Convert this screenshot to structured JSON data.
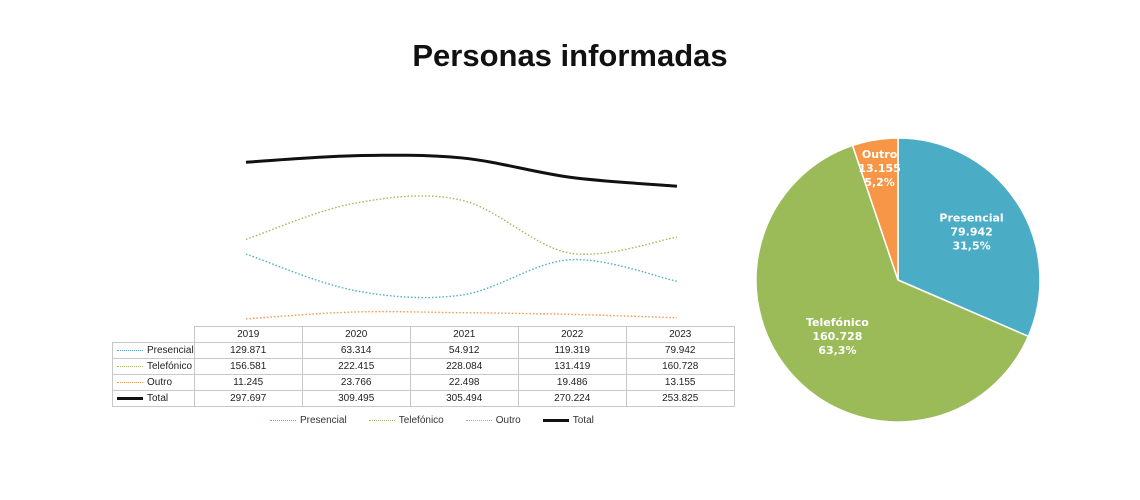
{
  "title": "Personas informadas",
  "chart_data": [
    {
      "type": "line",
      "categories": [
        "2019",
        "2020",
        "2021",
        "2022",
        "2023"
      ],
      "series": [
        {
          "name": "Presencial",
          "values": [
            129871,
            63314,
            54912,
            119319,
            79942
          ],
          "display": [
            "129.871",
            "63.314",
            "54.912",
            "119.319",
            "79.942"
          ],
          "color": "#4bacc6",
          "style": "dotted"
        },
        {
          "name": "Telefónico",
          "values": [
            156581,
            222415,
            228084,
            131419,
            160728
          ],
          "display": [
            "156.581",
            "222.415",
            "228.084",
            "131.419",
            "160.728"
          ],
          "color": "#9bbb59",
          "style": "dotted"
        },
        {
          "name": "Outro",
          "values": [
            11245,
            23766,
            22498,
            19486,
            13155
          ],
          "display": [
            "11.245",
            "23.766",
            "22.498",
            "19.486",
            "13.155"
          ],
          "color": "#f79646",
          "style": "dotted"
        },
        {
          "name": "Total",
          "values": [
            297697,
            309495,
            305494,
            270224,
            253825
          ],
          "display": [
            "297.697",
            "309.495",
            "305.494",
            "270.224",
            "253.825"
          ],
          "color": "#111111",
          "style": "solid"
        }
      ],
      "legend_position": "bottom",
      "grid": false
    },
    {
      "type": "pie",
      "slices": [
        {
          "name": "Presencial",
          "value": 79942,
          "display_value": "79.942",
          "percent": "31,5%",
          "color": "#4bacc6"
        },
        {
          "name": "Telefónico",
          "value": 160728,
          "display_value": "160.728",
          "percent": "63,3%",
          "color": "#9bbb59"
        },
        {
          "name": "Outro",
          "value": 13155,
          "display_value": "13.155",
          "percent": "5,2%",
          "color": "#f79646"
        }
      ]
    }
  ]
}
